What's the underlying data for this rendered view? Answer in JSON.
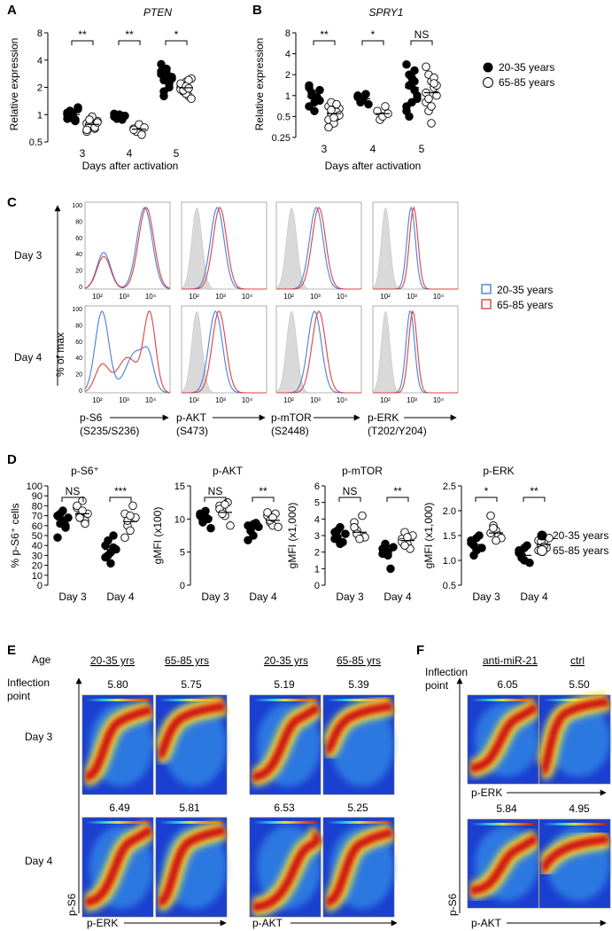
{
  "panels": {
    "A": "A",
    "B": "B",
    "C": "C",
    "D": "D",
    "E": "E",
    "F": "F"
  },
  "legend": {
    "young": "20-35 years",
    "old": "65-85 years"
  },
  "colors": {
    "young_line": "#4a7fd4",
    "old_line": "#e04040",
    "isotype_fill": "#d9d9d9",
    "heat_low": "#1b3fd0",
    "heat_high": "#c81414"
  },
  "panel_A": {
    "gene": "PTEN",
    "ylabel": "Relative expression",
    "xlabel": "Days after activation",
    "yticks": [
      "8",
      "4",
      "2",
      "1",
      "0.5"
    ],
    "days": [
      "3",
      "4",
      "5"
    ],
    "sig": [
      "**",
      "**",
      "*"
    ]
  },
  "panel_B": {
    "gene": "SPRY1",
    "ylabel": "Relative expression",
    "xlabel": "Days after activation",
    "yticks": [
      "8",
      "4",
      "2",
      "1",
      "0.5",
      "0.25"
    ],
    "days": [
      "3",
      "4",
      "5"
    ],
    "sig": [
      "**",
      "*",
      "NS"
    ]
  },
  "panel_C": {
    "rows": [
      "Day 3",
      "Day 4"
    ],
    "ylabel": "% of max",
    "yticks": [
      "100",
      "80",
      "60",
      "40",
      "20",
      "0"
    ],
    "xticks": [
      "10²",
      "10³",
      "10⁴"
    ],
    "markers": [
      {
        "name": "p-S6",
        "site": "(S235/S236)"
      },
      {
        "name": "p-AKT",
        "site": "(S473)"
      },
      {
        "name": "p-mTOR",
        "site": "(S2448)"
      },
      {
        "name": "p-ERK",
        "site": "(T202/Y204)"
      }
    ]
  },
  "panel_D": {
    "xcats": [
      "Day 3",
      "Day 4"
    ],
    "charts": [
      {
        "title": "p-S6⁺",
        "ylabel": "% p-S6⁺ cells",
        "yticks": [
          "100",
          "90",
          "80",
          "70",
          "60",
          "50",
          "40",
          "30",
          "20",
          "10",
          "0"
        ],
        "ymin": 0,
        "ymax": 100,
        "sig": [
          "NS",
          "***"
        ],
        "means": {
          "young": [
            66,
            36
          ],
          "old": [
            72,
            64
          ]
        }
      },
      {
        "title": "p-AKT",
        "ylabel": "gMFI (x100)",
        "yticks": [
          "15",
          "10",
          "5",
          "0"
        ],
        "ymin": 0,
        "ymax": 15,
        "sig": [
          "NS",
          "**"
        ],
        "means": {
          "young": [
            10.2,
            8.6
          ],
          "old": [
            11.0,
            9.8
          ]
        }
      },
      {
        "title": "p-mTOR",
        "ylabel": "gMFI (x1,000)",
        "yticks": [
          "6",
          "5",
          "4",
          "3",
          "2",
          "1",
          "0"
        ],
        "ymin": 0,
        "ymax": 6,
        "sig": [
          "NS",
          "**"
        ],
        "means": {
          "young": [
            3.0,
            2.1
          ],
          "old": [
            3.2,
            2.7
          ]
        }
      },
      {
        "title": "p-ERK",
        "ylabel": "gMFI (x1,000)",
        "yticks": [
          "2.5",
          "2.0",
          "1.5",
          "1.0",
          "0.5"
        ],
        "ymin": 0.5,
        "ymax": 2.5,
        "sig": [
          "*",
          "**"
        ],
        "means": {
          "young": [
            1.32,
            1.1
          ],
          "old": [
            1.55,
            1.32
          ]
        }
      }
    ]
  },
  "panel_E": {
    "age_label": "Age",
    "inflection_line1": "Inflection",
    "inflection_line2": "point",
    "groups": [
      "20-35 yrs",
      "65-85 yrs",
      "20-35 yrs",
      "65-85 yrs"
    ],
    "rows": [
      "Day 3",
      "Day 4"
    ],
    "values_day3": [
      "5.80",
      "5.75",
      "5.19",
      "5.39"
    ],
    "values_day4": [
      "6.49",
      "5.81",
      "6.53",
      "5.25"
    ],
    "yaxis": "p-S6",
    "xaxis": [
      "p-ERK",
      "p-AKT"
    ]
  },
  "panel_F": {
    "inflection_line1": "Inflection",
    "inflection_line2": "point",
    "groups": [
      "anti-miR-21",
      "ctrl"
    ],
    "values_top": [
      "6.05",
      "5.50"
    ],
    "values_bottom": [
      "5.84",
      "4.95"
    ],
    "xaxis": [
      "p-ERK",
      "p-AKT"
    ],
    "yaxis": "p-S6"
  },
  "chart_data": [
    {
      "type": "scatter",
      "title": "PTEN",
      "xlabel": "Days after activation",
      "ylabel": "Relative expression",
      "yscale": "log2",
      "ylim": [
        0.5,
        8
      ],
      "categories": [
        "3",
        "4",
        "5"
      ],
      "series": [
        {
          "name": "20-35 years",
          "values": [
            [
              1.05,
              0.95,
              1.0,
              0.85,
              1.2,
              0.9,
              1.1,
              0.98,
              0.88,
              1.15,
              1.0,
              0.92
            ],
            [
              0.95,
              0.9,
              1.0,
              0.88,
              0.97,
              1.02
            ],
            [
              2.8,
              2.4,
              3.2,
              2.0,
              2.6,
              3.6,
              1.8,
              2.9,
              2.2,
              2.5,
              3.0,
              1.6,
              2.7,
              2.3
            ]
          ],
          "means": [
            1.0,
            0.95,
            2.6
          ]
        },
        {
          "name": "65-85 years",
          "values": [
            [
              0.8,
              0.75,
              0.9,
              0.7,
              0.85,
              0.65,
              0.78,
              0.95,
              0.72,
              0.82,
              0.68,
              0.88
            ],
            [
              0.7,
              0.65,
              0.78,
              0.6,
              0.72,
              0.68
            ],
            [
              2.0,
              1.8,
              2.3,
              1.6,
              2.5,
              1.9,
              2.1,
              1.7,
              2.4,
              1.5,
              2.2,
              1.85,
              2.05,
              1.95
            ]
          ],
          "means": [
            0.78,
            0.69,
            1.98
          ]
        }
      ]
    },
    {
      "type": "scatter",
      "title": "SPRY1",
      "xlabel": "Days after activation",
      "ylabel": "Relative expression",
      "yscale": "log2",
      "ylim": [
        0.25,
        8
      ],
      "categories": [
        "3",
        "4",
        "5"
      ],
      "series": [
        {
          "name": "20-35 years",
          "values": [
            [
              1.4,
              1.0,
              0.8,
              0.9,
              1.2,
              0.7,
              1.1,
              0.6,
              0.95,
              0.85,
              1.3
            ],
            [
              1.0,
              0.8,
              0.9,
              1.05,
              0.75,
              0.95
            ],
            [
              2.8,
              2.0,
              1.5,
              1.2,
              0.9,
              0.7,
              0.5,
              1.8,
              2.3,
              1.0,
              0.6,
              1.4,
              0.8,
              1.6
            ]
          ],
          "means": [
            0.95,
            0.9,
            1.3
          ]
        },
        {
          "name": "65-85 years",
          "values": [
            [
              0.7,
              0.55,
              0.6,
              0.5,
              0.65,
              0.45,
              0.8,
              0.4,
              0.58,
              0.52,
              0.35,
              0.62,
              0.48,
              0.75
            ],
            [
              0.6,
              0.45,
              0.5,
              0.7,
              0.55
            ],
            [
              2.6,
              2.0,
              1.6,
              1.3,
              1.0,
              0.8,
              0.6,
              0.4,
              1.8,
              1.4,
              1.1,
              0.9,
              0.7,
              1.5
            ]
          ],
          "means": [
            0.55,
            0.55,
            1.1
          ]
        }
      ]
    },
    {
      "type": "scatter",
      "title": "p-S6⁺",
      "ylabel": "% p-S6⁺ cells",
      "ylim": [
        0,
        100
      ],
      "categories": [
        "Day 3",
        "Day 4"
      ],
      "series": [
        {
          "name": "20-35 years",
          "values": [
            [
              70,
              62,
              75,
              58,
              68,
              48,
              72,
              65,
              60
            ],
            [
              40,
              30,
              22,
              50,
              36,
              28,
              45,
              33,
              38
            ]
          ],
          "means": [
            66,
            36
          ]
        },
        {
          "name": "65-85 years",
          "values": [
            [
              78,
              70,
              85,
              65,
              72,
              80,
              68,
              75,
              62
            ],
            [
              72,
              60,
              55,
              80,
              68,
              48,
              65,
              70
            ]
          ],
          "means": [
            72,
            64
          ]
        }
      ]
    },
    {
      "type": "scatter",
      "title": "p-AKT",
      "ylabel": "gMFI (x100)",
      "ylim": [
        0,
        15
      ],
      "categories": [
        "Day 3",
        "Day 4"
      ],
      "series": [
        {
          "name": "20-35 years",
          "values": [
            [
              10.5,
              9.8,
              11.2,
              10.0,
              8.6,
              10.8,
              9.5,
              10.3
            ],
            [
              9.0,
              8.2,
              7.5,
              9.4,
              8.8,
              6.8,
              8.5,
              9.2
            ]
          ],
          "means": [
            10.2,
            8.6
          ]
        },
        {
          "name": "65-85 years",
          "values": [
            [
              12.0,
              11.2,
              10.5,
              12.5,
              9.0,
              11.5,
              10.8,
              12.2
            ],
            [
              10.5,
              9.5,
              9.0,
              10.8,
              8.8,
              11.0,
              9.8,
              10.2
            ]
          ],
          "means": [
            11.0,
            9.8
          ]
        }
      ]
    },
    {
      "type": "scatter",
      "title": "p-mTOR",
      "ylabel": "gMFI (x1,000)",
      "ylim": [
        0,
        6
      ],
      "categories": [
        "Day 3",
        "Day 4"
      ],
      "series": [
        {
          "name": "20-35 years",
          "values": [
            [
              3.2,
              2.9,
              3.5,
              2.6,
              3.1,
              2.8,
              3.3,
              2.5
            ],
            [
              2.2,
              2.5,
              1.8,
              1.0,
              2.3,
              1.9,
              2.4,
              2.0
            ]
          ],
          "means": [
            3.0,
            2.1
          ]
        },
        {
          "name": "65-85 years",
          "values": [
            [
              3.8,
              3.3,
              3.0,
              4.2,
              2.9,
              3.5,
              3.1,
              2.8
            ],
            [
              2.8,
              3.2,
              2.5,
              2.2,
              3.0,
              2.6,
              2.4,
              2.9
            ]
          ],
          "means": [
            3.2,
            2.7
          ]
        }
      ]
    },
    {
      "type": "scatter",
      "title": "p-ERK",
      "ylabel": "gMFI (x1,000)",
      "ylim": [
        0.5,
        2.5
      ],
      "categories": [
        "Day 3",
        "Day 4"
      ],
      "series": [
        {
          "name": "20-35 years",
          "values": [
            [
              1.4,
              1.3,
              1.2,
              1.5,
              1.25,
              1.35,
              1.1,
              1.45
            ],
            [
              1.2,
              1.1,
              1.0,
              1.3,
              0.95,
              1.15,
              1.05,
              1.25
            ]
          ],
          "means": [
            1.32,
            1.1
          ]
        },
        {
          "name": "65-85 years",
          "values": [
            [
              1.9,
              1.7,
              1.6,
              1.5,
              1.45,
              1.55,
              1.65,
              1.4
            ],
            [
              1.4,
              1.3,
              1.35,
              1.25,
              1.45,
              1.2,
              1.38,
              1.28
            ]
          ],
          "means": [
            1.55,
            1.32
          ]
        }
      ]
    }
  ]
}
